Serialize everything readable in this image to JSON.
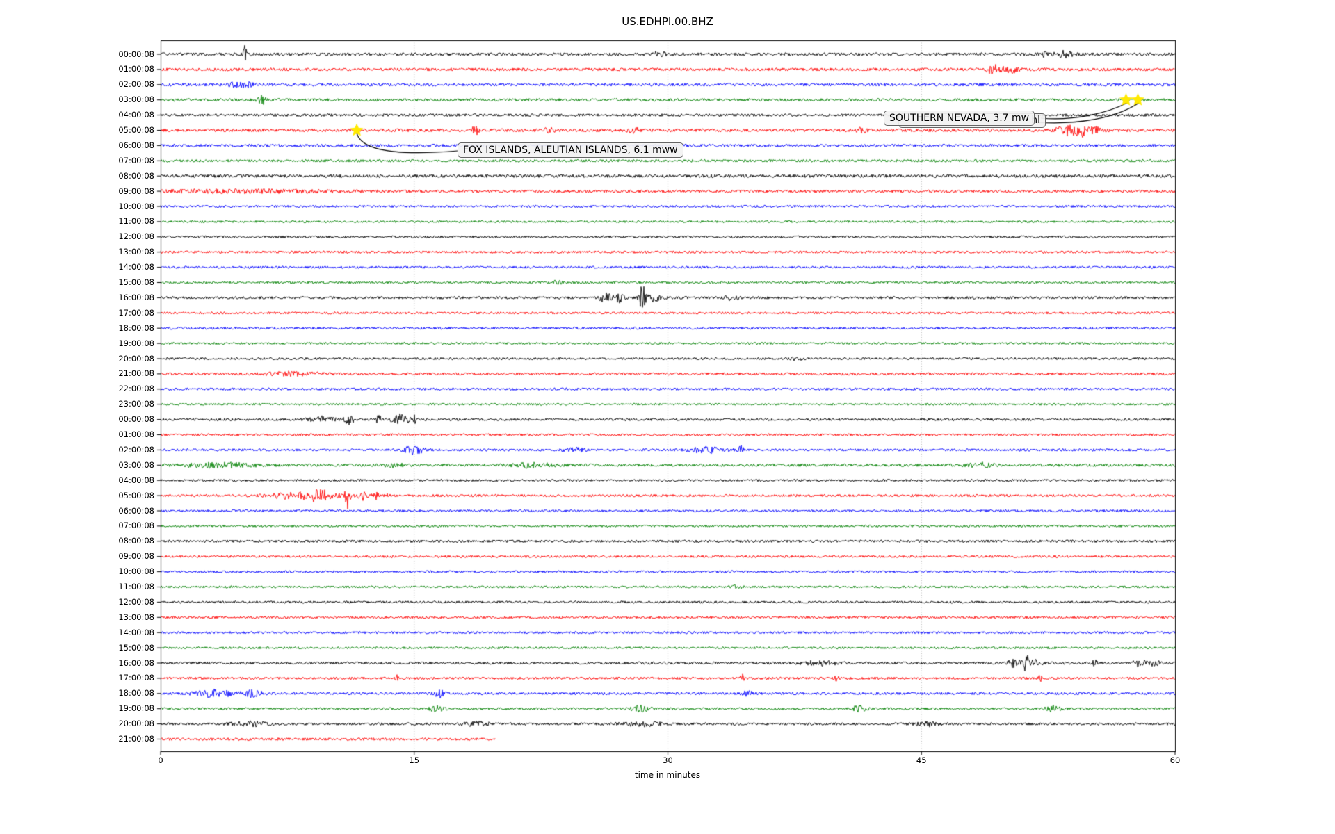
{
  "title": "US.EDHPI.00.BHZ",
  "colors": {
    "background": "#ffffff",
    "frame": "#000000",
    "grid": "#9a9a9a",
    "star": "#ffe900",
    "annotation_bg": "#f2f2f2",
    "annotation_border": "#666666",
    "trace_color_cycle": [
      "#000000",
      "#ff0000",
      "#0000ff",
      "#008000"
    ]
  },
  "chart_data": {
    "type": "line",
    "subtype": "seismogram_helicorder_day_plot",
    "title": "US.EDHPI.00.BHZ",
    "x_axis": {
      "label": "time in minutes",
      "ticks": [
        0,
        15,
        30,
        45,
        60
      ],
      "range": [
        0,
        60
      ],
      "gridlines_minutes": [
        15,
        30,
        45
      ],
      "grid_style": "dotted"
    },
    "y_axis": {
      "description": "one trace per hour, two consecutive days, hour start times",
      "tick_side": "left"
    },
    "bursts_format": "[minute, amplitude_px, sigma_minutes]",
    "rows": [
      {
        "label": "00:00:08",
        "color": "#000000",
        "noise": 2.2,
        "bursts": [
          [
            5.0,
            12,
            0.07
          ],
          [
            29.5,
            3,
            0.3
          ],
          [
            52.3,
            6,
            0.06
          ],
          [
            53.4,
            5,
            0.35
          ]
        ]
      },
      {
        "label": "01:00:08",
        "color": "#ff0000",
        "noise": 2.2,
        "bursts": [
          [
            49.3,
            6,
            0.3
          ],
          [
            50.3,
            5,
            0.3
          ]
        ]
      },
      {
        "label": "02:00:08",
        "color": "#0000ff",
        "noise": 2.2,
        "bursts": [
          [
            4.8,
            4,
            0.5
          ]
        ]
      },
      {
        "label": "03:00:08",
        "color": "#008000",
        "noise": 2.1,
        "bursts": [
          [
            6.0,
            8,
            0.15
          ]
        ]
      },
      {
        "label": "04:00:08",
        "color": "#000000",
        "noise": 2.0,
        "bursts": []
      },
      {
        "label": "05:00:08",
        "color": "#ff0000",
        "noise": 2.3,
        "bursts": [
          [
            18.7,
            5,
            0.25
          ],
          [
            23.0,
            4,
            0.2
          ],
          [
            28.0,
            4,
            0.2
          ],
          [
            41.5,
            3,
            0.2
          ],
          [
            53.6,
            7,
            0.4
          ],
          [
            54.5,
            9,
            0.25
          ],
          [
            55.3,
            5,
            0.2
          ]
        ]
      },
      {
        "label": "06:00:08",
        "color": "#0000ff",
        "noise": 2.0,
        "bursts": []
      },
      {
        "label": "07:00:08",
        "color": "#008000",
        "noise": 1.9,
        "bursts": []
      },
      {
        "label": "08:00:08",
        "color": "#000000",
        "noise": 2.3,
        "bursts": []
      },
      {
        "label": "09:00:08",
        "color": "#ff0000",
        "noise": 2.0,
        "bursts": [
          [
            5.0,
            1.8,
            4.0
          ]
        ]
      },
      {
        "label": "10:00:08",
        "color": "#0000ff",
        "noise": 1.7,
        "bursts": []
      },
      {
        "label": "11:00:08",
        "color": "#008000",
        "noise": 1.6,
        "bursts": []
      },
      {
        "label": "12:00:08",
        "color": "#000000",
        "noise": 1.7,
        "bursts": []
      },
      {
        "label": "13:00:08",
        "color": "#ff0000",
        "noise": 1.8,
        "bursts": []
      },
      {
        "label": "14:00:08",
        "color": "#0000ff",
        "noise": 1.7,
        "bursts": []
      },
      {
        "label": "15:00:08",
        "color": "#008000",
        "noise": 1.6,
        "bursts": [
          [
            23.5,
            2.5,
            0.3
          ]
        ]
      },
      {
        "label": "16:00:08",
        "color": "#000000",
        "noise": 1.9,
        "bursts": [
          [
            26.3,
            6,
            0.25
          ],
          [
            27.1,
            7,
            0.2
          ],
          [
            28.5,
            19,
            0.12
          ],
          [
            29.2,
            5,
            0.3
          ],
          [
            33.8,
            3,
            0.3
          ]
        ]
      },
      {
        "label": "17:00:08",
        "color": "#ff0000",
        "noise": 1.7,
        "bursts": []
      },
      {
        "label": "18:00:08",
        "color": "#0000ff",
        "noise": 1.8,
        "bursts": []
      },
      {
        "label": "19:00:08",
        "color": "#008000",
        "noise": 1.6,
        "bursts": []
      },
      {
        "label": "20:00:08",
        "color": "#000000",
        "noise": 1.7,
        "bursts": [
          [
            37.5,
            2.5,
            0.3
          ]
        ]
      },
      {
        "label": "21:00:08",
        "color": "#ff0000",
        "noise": 1.9,
        "bursts": [
          [
            8.0,
            2.5,
            1.2
          ]
        ]
      },
      {
        "label": "22:00:08",
        "color": "#0000ff",
        "noise": 1.8,
        "bursts": []
      },
      {
        "label": "23:00:08",
        "color": "#008000",
        "noise": 1.6,
        "bursts": []
      },
      {
        "label": "00:00:08",
        "color": "#000000",
        "noise": 1.9,
        "bursts": [
          [
            9.5,
            4,
            0.5
          ],
          [
            11.2,
            6,
            0.25
          ],
          [
            12.9,
            6,
            0.12
          ],
          [
            14.2,
            7,
            0.35
          ],
          [
            15.0,
            6,
            0.12
          ]
        ]
      },
      {
        "label": "01:00:08",
        "color": "#ff0000",
        "noise": 1.7,
        "bursts": []
      },
      {
        "label": "02:00:08",
        "color": "#0000ff",
        "noise": 1.8,
        "bursts": [
          [
            15.0,
            6,
            0.4
          ],
          [
            24.5,
            3,
            0.4
          ],
          [
            32.4,
            4,
            0.8
          ],
          [
            34.3,
            7,
            0.1
          ]
        ]
      },
      {
        "label": "03:00:08",
        "color": "#008000",
        "noise": 2.0,
        "bursts": [
          [
            3.5,
            3,
            1.5
          ],
          [
            13.8,
            3,
            0.35
          ],
          [
            22.0,
            3,
            0.8
          ],
          [
            48.5,
            3,
            0.5
          ]
        ]
      },
      {
        "label": "04:00:08",
        "color": "#000000",
        "noise": 1.7,
        "bursts": []
      },
      {
        "label": "05:00:08",
        "color": "#ff0000",
        "noise": 1.8,
        "bursts": [
          [
            8.0,
            5,
            1.0
          ],
          [
            9.5,
            6,
            0.7
          ],
          [
            11.05,
            18,
            0.1
          ],
          [
            11.9,
            6,
            0.18
          ],
          [
            12.7,
            5,
            0.14
          ],
          [
            13.4,
            3,
            0.1
          ]
        ]
      },
      {
        "label": "06:00:08",
        "color": "#0000ff",
        "noise": 1.7,
        "bursts": []
      },
      {
        "label": "07:00:08",
        "color": "#008000",
        "noise": 1.6,
        "bursts": []
      },
      {
        "label": "08:00:08",
        "color": "#000000",
        "noise": 1.9,
        "bursts": []
      },
      {
        "label": "09:00:08",
        "color": "#ff0000",
        "noise": 1.7,
        "bursts": []
      },
      {
        "label": "10:00:08",
        "color": "#0000ff",
        "noise": 1.7,
        "bursts": []
      },
      {
        "label": "11:00:08",
        "color": "#008000",
        "noise": 1.6,
        "bursts": [
          [
            34.0,
            2.5,
            0.3
          ]
        ]
      },
      {
        "label": "12:00:08",
        "color": "#000000",
        "noise": 1.7,
        "bursts": []
      },
      {
        "label": "13:00:08",
        "color": "#ff0000",
        "noise": 1.7,
        "bursts": []
      },
      {
        "label": "14:00:08",
        "color": "#0000ff",
        "noise": 1.7,
        "bursts": []
      },
      {
        "label": "15:00:08",
        "color": "#008000",
        "noise": 1.6,
        "bursts": []
      },
      {
        "label": "16:00:08",
        "color": "#000000",
        "noise": 1.9,
        "bursts": [
          [
            39.0,
            2.5,
            0.8
          ],
          [
            50.5,
            6,
            0.25
          ],
          [
            51.2,
            16,
            0.09
          ],
          [
            51.8,
            6,
            0.2
          ],
          [
            55.3,
            5,
            0.12
          ],
          [
            57.9,
            5,
            0.25
          ],
          [
            58.8,
            4,
            0.18
          ]
        ]
      },
      {
        "label": "17:00:08",
        "color": "#ff0000",
        "noise": 1.8,
        "bursts": [
          [
            14.0,
            4,
            0.09
          ],
          [
            34.4,
            5,
            0.09
          ],
          [
            40.0,
            4,
            0.09
          ],
          [
            52.0,
            5,
            0.1
          ]
        ]
      },
      {
        "label": "18:00:08",
        "color": "#0000ff",
        "noise": 1.9,
        "bursts": [
          [
            3.2,
            5,
            0.8
          ],
          [
            5.5,
            4,
            0.4
          ],
          [
            16.5,
            5,
            0.2
          ],
          [
            34.7,
            4,
            0.2
          ]
        ]
      },
      {
        "label": "19:00:08",
        "color": "#008000",
        "noise": 1.7,
        "bursts": [
          [
            16.3,
            4,
            0.3
          ],
          [
            28.3,
            4,
            0.4
          ],
          [
            41.3,
            4,
            0.3
          ],
          [
            52.8,
            4,
            0.3
          ]
        ]
      },
      {
        "label": "20:00:08",
        "color": "#000000",
        "noise": 1.8,
        "bursts": [
          [
            5.3,
            3,
            0.8
          ],
          [
            18.6,
            3,
            0.6
          ],
          [
            28.5,
            3,
            0.8
          ],
          [
            45.4,
            3,
            0.6
          ]
        ]
      },
      {
        "label": "21:00:08",
        "color": "#ff0000",
        "noise": 2.0,
        "bursts": [],
        "end_minute": 19.8
      }
    ]
  },
  "annotations": {
    "fox": {
      "text": "FOX ISLANDS, ALEUTIAN ISLANDS, 6.1 mww",
      "star_row": 5,
      "star_minute": 11.6
    },
    "nevada": {
      "text": "SOUTHERN NEVADA, 3.7 mw",
      "star_row": 3,
      "star_minutes": [
        57.1,
        57.8
      ]
    },
    "nevada_back": {
      "visible_fragment": "hl"
    }
  }
}
